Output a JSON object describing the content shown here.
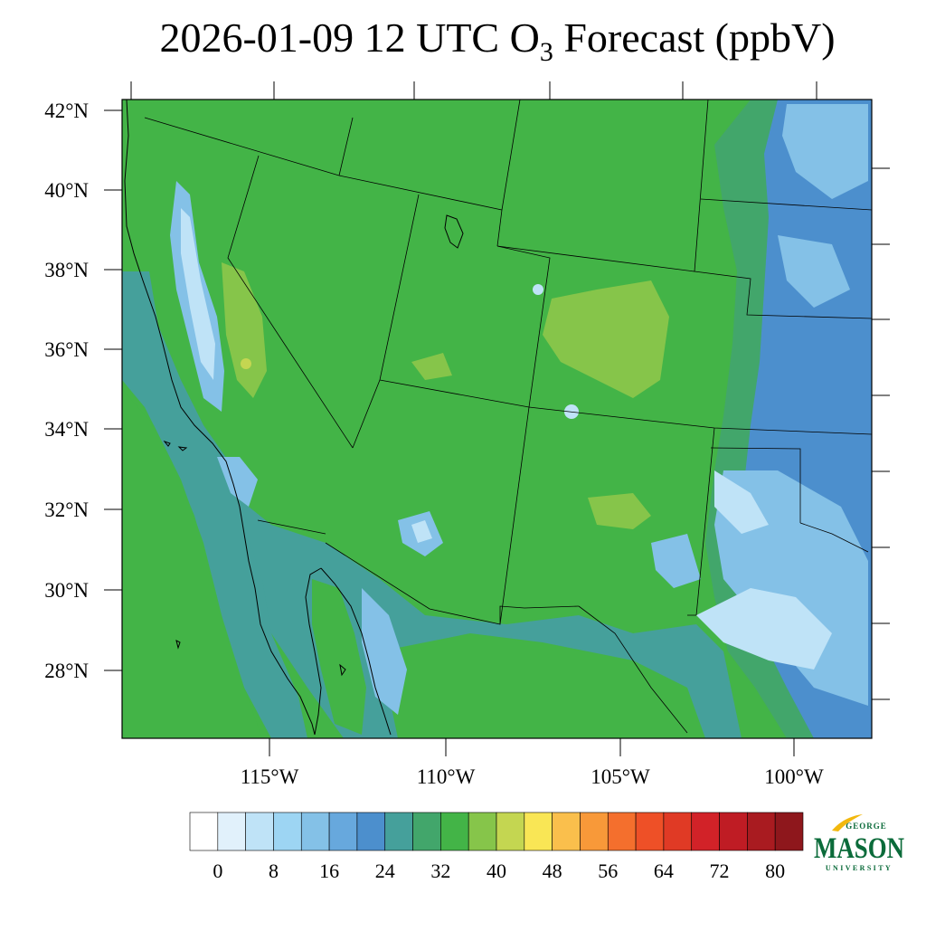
{
  "title": {
    "prefix": "2026-01-09 12 UTC O",
    "subscript": "3",
    "suffix": " Forecast (ppbV)"
  },
  "axes": {
    "lat_labels": [
      "42°N",
      "40°N",
      "38°N",
      "36°N",
      "34°N",
      "32°N",
      "30°N",
      "28°N"
    ],
    "lon_labels": [
      "115°W",
      "110°W",
      "105°W",
      "100°W"
    ]
  },
  "colorbar": {
    "tick_labels": [
      "0",
      "8",
      "16",
      "24",
      "32",
      "40",
      "48",
      "56",
      "64",
      "72",
      "80"
    ],
    "colors": [
      "#ffffff",
      "#e1f1fb",
      "#bfe3f7",
      "#9dd5f3",
      "#84c1e7",
      "#67a8dd",
      "#4c8fcd",
      "#45a09b",
      "#42a66b",
      "#43b447",
      "#86c54a",
      "#c4d651",
      "#f9e655",
      "#fabf4c",
      "#f89939",
      "#f46f2d",
      "#ee5027",
      "#e03a25",
      "#d22228",
      "#bf1c24",
      "#a91b20",
      "#8e171c"
    ]
  },
  "logo": {
    "top": "GEORGE",
    "main": "MASON",
    "bottom": "UNIVERSITY",
    "green": "#0b6b3a",
    "gold": "#f2b80e"
  },
  "map_colors": {
    "base_green": "#43b447",
    "light_green": "#86c54a",
    "teal": "#45a09b",
    "mid_green": "#42a66b",
    "blue": "#4c8fcd",
    "light_blue": "#84c1e7",
    "pale_blue": "#bfe3f7",
    "yellow_green": "#c4d651"
  }
}
